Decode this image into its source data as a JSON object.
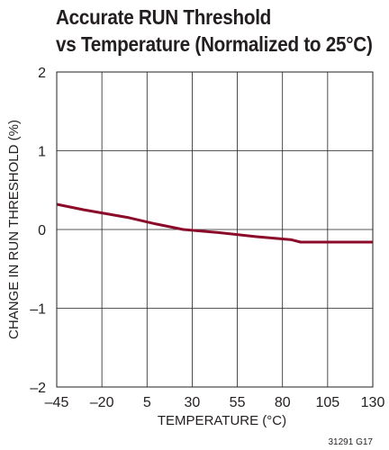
{
  "chart_data": {
    "type": "line",
    "title_line1": "Accurate RUN Threshold",
    "title_line2": "vs Temperature (Normalized to 25°C)",
    "xlabel": "TEMPERATURE (°C)",
    "ylabel": "CHANGE IN RUN THRESHOLD (%)",
    "xlim": [
      -45,
      130
    ],
    "ylim": [
      -2,
      2
    ],
    "x_ticks": [
      -45,
      -20,
      5,
      30,
      55,
      80,
      105,
      130
    ],
    "x_tick_labels": [
      "–45",
      "–20",
      "5",
      "30",
      "55",
      "80",
      "105",
      "130"
    ],
    "y_ticks": [
      -2,
      -1,
      0,
      1,
      2
    ],
    "y_tick_labels": [
      "–2",
      "–1",
      "0",
      "1",
      "2"
    ],
    "grid": true,
    "series": [
      {
        "color": "#8b0a2a",
        "x": [
          -45,
          -30,
          -15,
          -5,
          10,
          25,
          45,
          65,
          85,
          90,
          110,
          130
        ],
        "y": [
          0.32,
          0.25,
          0.19,
          0.15,
          0.07,
          0.0,
          -0.04,
          -0.09,
          -0.13,
          -0.16,
          -0.16,
          -0.16
        ]
      }
    ],
    "figure_code": "31291 G17"
  }
}
